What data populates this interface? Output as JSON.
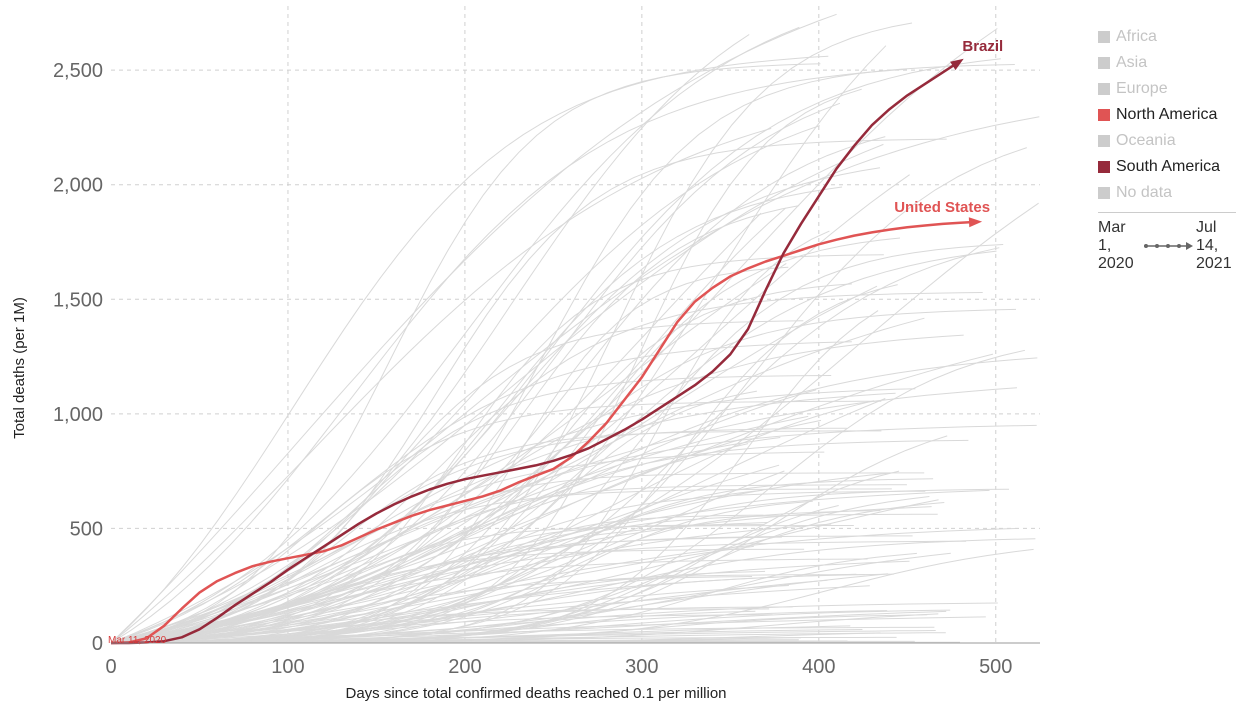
{
  "chart_data": {
    "type": "line",
    "xlabel": "Days since total confirmed deaths reached 0.1 per million",
    "ylabel": "Total deaths (per 1M)",
    "xlim": [
      0,
      525
    ],
    "ylim": [
      0,
      2780
    ],
    "x_ticks": [
      0,
      100,
      200,
      300,
      400,
      500
    ],
    "x_tick_labels": [
      "0",
      "100",
      "200",
      "300",
      "400",
      "500"
    ],
    "y_ticks": [
      0,
      500,
      1000,
      1500,
      2000,
      2500
    ],
    "y_tick_labels": [
      "0",
      "500",
      "1,000",
      "1,500",
      "2,000",
      "2,500"
    ],
    "grid": true,
    "legend_position": "right",
    "start_annotation": "Mar 11, 2020",
    "colors": {
      "north_america": "#e05454",
      "south_america": "#962a3b",
      "background_lines": "#d9d9d9",
      "grid": "#d0d0d0"
    },
    "series": [
      {
        "name": "United States",
        "color": "#e05454",
        "x": [
          0,
          10,
          20,
          30,
          40,
          50,
          60,
          70,
          80,
          90,
          100,
          110,
          120,
          130,
          140,
          150,
          160,
          170,
          180,
          190,
          200,
          210,
          220,
          230,
          240,
          250,
          260,
          270,
          280,
          290,
          300,
          310,
          320,
          330,
          340,
          350,
          360,
          370,
          380,
          390,
          400,
          410,
          420,
          430,
          440,
          450,
          460,
          470,
          480,
          490
        ],
        "y": [
          0,
          2,
          20,
          75,
          150,
          220,
          270,
          305,
          335,
          355,
          370,
          385,
          400,
          425,
          460,
          495,
          525,
          555,
          580,
          600,
          620,
          640,
          665,
          700,
          730,
          760,
          810,
          880,
          960,
          1060,
          1160,
          1280,
          1400,
          1490,
          1550,
          1600,
          1635,
          1665,
          1690,
          1715,
          1740,
          1760,
          1778,
          1792,
          1804,
          1814,
          1822,
          1829,
          1834,
          1838
        ]
      },
      {
        "name": "Brazil",
        "color": "#962a3b",
        "x": [
          0,
          10,
          20,
          30,
          40,
          50,
          60,
          70,
          80,
          90,
          100,
          110,
          120,
          130,
          140,
          150,
          160,
          170,
          180,
          190,
          200,
          210,
          220,
          230,
          240,
          250,
          260,
          270,
          280,
          290,
          300,
          310,
          320,
          330,
          340,
          350,
          360,
          370,
          380,
          390,
          400,
          410,
          420,
          430,
          440,
          450,
          460,
          470,
          480
        ],
        "y": [
          0,
          0,
          2,
          8,
          25,
          60,
          110,
          165,
          215,
          265,
          320,
          370,
          420,
          470,
          520,
          565,
          605,
          640,
          670,
          695,
          715,
          730,
          745,
          760,
          775,
          795,
          820,
          850,
          890,
          930,
          975,
          1025,
          1075,
          1125,
          1185,
          1260,
          1370,
          1540,
          1700,
          1830,
          1950,
          2070,
          2170,
          2260,
          2330,
          2390,
          2440,
          2490,
          2540
        ]
      }
    ]
  },
  "legend": {
    "items": [
      {
        "label": "Africa",
        "color": "#cccccc",
        "active": false
      },
      {
        "label": "Asia",
        "color": "#cccccc",
        "active": false
      },
      {
        "label": "Europe",
        "color": "#cccccc",
        "active": false
      },
      {
        "label": "North America",
        "color": "#e05454",
        "active": true
      },
      {
        "label": "Oceania",
        "color": "#cccccc",
        "active": false
      },
      {
        "label": "South America",
        "color": "#962a3b",
        "active": true
      },
      {
        "label": "No data",
        "color": "#cccccc",
        "active": false
      }
    ]
  },
  "time_range": {
    "start": "Mar\n1,\n2020",
    "end": "Jul\n14,\n2021"
  }
}
